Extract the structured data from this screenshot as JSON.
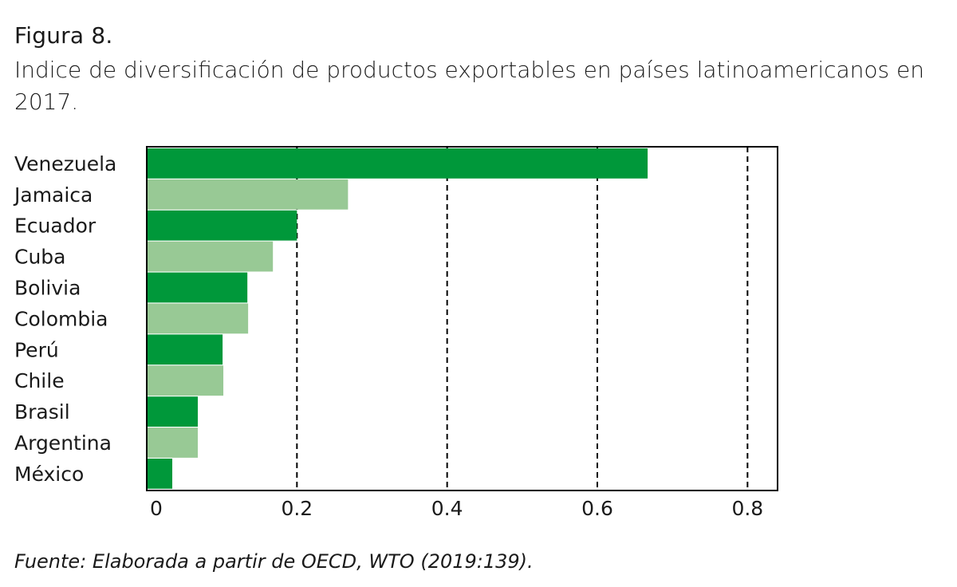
{
  "figure": {
    "label": "Figura 8.",
    "title": "Indice de diversificación de productos exportables en países latinoamericanos en 2017."
  },
  "source": "Fuente: Elaborada a partir de OECD, WTO (2019:139).",
  "colors": {
    "dark_green": "#00983a",
    "light_green": "#98c995",
    "frame": "#000000",
    "gridline": "#000000"
  },
  "chart_data": {
    "type": "bar",
    "orientation": "horizontal",
    "title": "",
    "xlabel": "",
    "ylabel": "",
    "categories": [
      "Venezuela",
      "Jamaica",
      "Ecuador",
      "Cuba",
      "Bolivia",
      "Colombia",
      "Perú",
      "Chile",
      "Brasil",
      "Argentina",
      "México"
    ],
    "values": [
      0.667,
      0.268,
      0.2,
      0.168,
      0.134,
      0.135,
      0.101,
      0.102,
      0.068,
      0.068,
      0.034
    ],
    "bar_colors": [
      "dark_green",
      "light_green",
      "dark_green",
      "light_green",
      "dark_green",
      "light_green",
      "dark_green",
      "light_green",
      "dark_green",
      "light_green",
      "dark_green"
    ],
    "xlim": [
      0,
      0.84
    ],
    "xticks": [
      0,
      0.2,
      0.4,
      0.6,
      0.8
    ],
    "xtick_labels": [
      "0",
      "0.2",
      "0.4",
      "0.6",
      "0.8"
    ],
    "grid": "vertical dashed lines at 0.2, 0.4, 0.6, 0.8",
    "legend": "none"
  }
}
